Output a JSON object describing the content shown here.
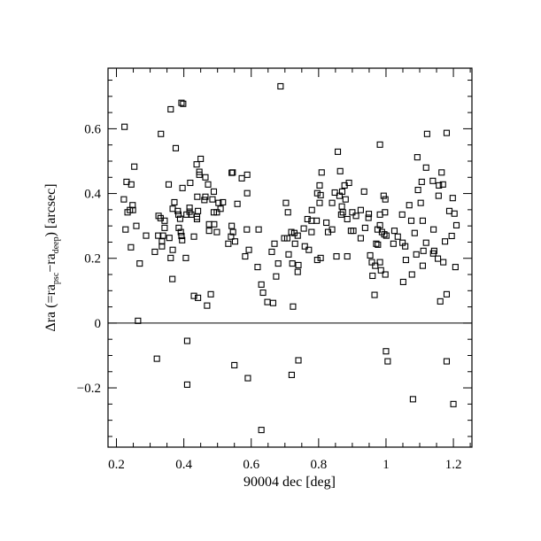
{
  "chart_data": {
    "type": "scatter",
    "title": "",
    "xlabel": "90004 dec [deg]",
    "ylabel": "Δra (=ra_psc−ra_deep) [arcsec]",
    "ylabel_parts": {
      "a": "Δra (=ra",
      "sub1": "psc",
      "b": "−ra",
      "sub2": "deep",
      "c": ") [arcsec]"
    },
    "xlim": [
      0.175,
      1.255
    ],
    "ylim": [
      -0.383,
      0.787
    ],
    "grid": false,
    "marker": "open-square",
    "colors": {
      "marker": "#000000",
      "axes": "#000000",
      "background": "#ffffff"
    },
    "xticks": [
      {
        "value": 0.2,
        "label": "0.2"
      },
      {
        "value": 0.4,
        "label": "0.4"
      },
      {
        "value": 0.6,
        "label": "0.6"
      },
      {
        "value": 0.8,
        "label": "0.8"
      },
      {
        "value": 1.0,
        "label": "1"
      },
      {
        "value": 1.2,
        "label": "1.2"
      }
    ],
    "yticks": [
      {
        "value": -0.2,
        "label": "−0.2"
      },
      {
        "value": 0,
        "label": "0"
      },
      {
        "value": 0.2,
        "label": "0.2"
      },
      {
        "value": 0.4,
        "label": "0.4"
      },
      {
        "value": 0.6,
        "label": "0.6"
      }
    ],
    "minor_tick_step": 0.05,
    "reference_line_y": 0,
    "points": [
      [
        0.393,
        0.68
      ],
      [
        0.398,
        0.677
      ],
      [
        0.361,
        0.66
      ],
      [
        0.224,
        0.606
      ],
      [
        0.332,
        0.584
      ],
      [
        0.376,
        0.54
      ],
      [
        0.45,
        0.507
      ],
      [
        0.438,
        0.49
      ],
      [
        0.253,
        0.483
      ],
      [
        0.446,
        0.467
      ],
      [
        0.446,
        0.458
      ],
      [
        0.464,
        0.45
      ],
      [
        0.542,
        0.464
      ],
      [
        0.23,
        0.436
      ],
      [
        0.244,
        0.428
      ],
      [
        0.355,
        0.428
      ],
      [
        0.419,
        0.433
      ],
      [
        0.472,
        0.428
      ],
      [
        0.396,
        0.417
      ],
      [
        0.489,
        0.406
      ],
      [
        0.222,
        0.382
      ],
      [
        0.248,
        0.364
      ],
      [
        0.372,
        0.373
      ],
      [
        0.44,
        0.39
      ],
      [
        0.464,
        0.39
      ],
      [
        0.461,
        0.38
      ],
      [
        0.485,
        0.382
      ],
      [
        0.503,
        0.371
      ],
      [
        0.516,
        0.373
      ],
      [
        0.367,
        0.353
      ],
      [
        0.417,
        0.356
      ],
      [
        0.509,
        0.353
      ],
      [
        0.233,
        0.342
      ],
      [
        0.24,
        0.349
      ],
      [
        0.249,
        0.349
      ],
      [
        0.382,
        0.346
      ],
      [
        0.384,
        0.335
      ],
      [
        0.389,
        0.322
      ],
      [
        0.417,
        0.344
      ],
      [
        0.408,
        0.335
      ],
      [
        0.422,
        0.335
      ],
      [
        0.442,
        0.346
      ],
      [
        0.439,
        0.328
      ],
      [
        0.439,
        0.321
      ],
      [
        0.325,
        0.331
      ],
      [
        0.331,
        0.324
      ],
      [
        0.343,
        0.316
      ],
      [
        0.489,
        0.342
      ],
      [
        0.498,
        0.342
      ],
      [
        0.259,
        0.3
      ],
      [
        0.227,
        0.289
      ],
      [
        0.343,
        0.294
      ],
      [
        0.385,
        0.294
      ],
      [
        0.391,
        0.281
      ],
      [
        0.393,
        0.269
      ],
      [
        0.395,
        0.256
      ],
      [
        0.288,
        0.27
      ],
      [
        0.324,
        0.27
      ],
      [
        0.338,
        0.27
      ],
      [
        0.357,
        0.263
      ],
      [
        0.335,
        0.252
      ],
      [
        0.335,
        0.237
      ],
      [
        0.43,
        0.267
      ],
      [
        0.475,
        0.305
      ],
      [
        0.49,
        0.305
      ],
      [
        0.475,
        0.285
      ],
      [
        0.498,
        0.281
      ],
      [
        0.542,
        0.3
      ],
      [
        0.532,
        0.245
      ],
      [
        0.243,
        0.234
      ],
      [
        0.314,
        0.22
      ],
      [
        0.367,
        0.226
      ],
      [
        0.361,
        0.201
      ],
      [
        0.406,
        0.201
      ],
      [
        0.269,
        0.184
      ],
      [
        0.366,
        0.136
      ],
      [
        0.43,
        0.084
      ],
      [
        0.442,
        0.078
      ],
      [
        0.48,
        0.089
      ],
      [
        0.469,
        0.054
      ],
      [
        0.264,
        0.007
      ],
      [
        0.687,
        0.731
      ],
      [
        0.857,
        0.529
      ],
      [
        0.545,
        0.465
      ],
      [
        0.572,
        0.447
      ],
      [
        0.588,
        0.458
      ],
      [
        0.809,
        0.465
      ],
      [
        0.864,
        0.469
      ],
      [
        0.803,
        0.425
      ],
      [
        0.89,
        0.433
      ],
      [
        0.877,
        0.425
      ],
      [
        0.588,
        0.401
      ],
      [
        0.796,
        0.401
      ],
      [
        0.806,
        0.395
      ],
      [
        0.848,
        0.403
      ],
      [
        0.87,
        0.406
      ],
      [
        0.862,
        0.393
      ],
      [
        0.88,
        0.382
      ],
      [
        0.559,
        0.368
      ],
      [
        0.703,
        0.371
      ],
      [
        0.803,
        0.371
      ],
      [
        0.84,
        0.371
      ],
      [
        0.869,
        0.36
      ],
      [
        0.709,
        0.342
      ],
      [
        0.78,
        0.349
      ],
      [
        0.872,
        0.342
      ],
      [
        0.867,
        0.335
      ],
      [
        0.9,
        0.342
      ],
      [
        0.885,
        0.321
      ],
      [
        0.767,
        0.321
      ],
      [
        0.779,
        0.316
      ],
      [
        0.794,
        0.316
      ],
      [
        0.823,
        0.31
      ],
      [
        0.546,
        0.281
      ],
      [
        0.54,
        0.267
      ],
      [
        0.587,
        0.289
      ],
      [
        0.622,
        0.289
      ],
      [
        0.552,
        0.252
      ],
      [
        0.719,
        0.281
      ],
      [
        0.728,
        0.278
      ],
      [
        0.738,
        0.27
      ],
      [
        0.698,
        0.262
      ],
      [
        0.707,
        0.262
      ],
      [
        0.756,
        0.292
      ],
      [
        0.779,
        0.281
      ],
      [
        0.828,
        0.281
      ],
      [
        0.84,
        0.289
      ],
      [
        0.896,
        0.285
      ],
      [
        0.669,
        0.245
      ],
      [
        0.73,
        0.245
      ],
      [
        0.759,
        0.237
      ],
      [
        0.771,
        0.226
      ],
      [
        0.593,
        0.226
      ],
      [
        0.582,
        0.206
      ],
      [
        0.661,
        0.22
      ],
      [
        0.711,
        0.212
      ],
      [
        0.796,
        0.195
      ],
      [
        0.806,
        0.201
      ],
      [
        0.853,
        0.206
      ],
      [
        0.885,
        0.206
      ],
      [
        0.619,
        0.173
      ],
      [
        0.68,
        0.184
      ],
      [
        0.722,
        0.184
      ],
      [
        0.74,
        0.179
      ],
      [
        0.738,
        0.158
      ],
      [
        0.674,
        0.144
      ],
      [
        0.63,
        0.119
      ],
      [
        0.635,
        0.094
      ],
      [
        0.648,
        0.065
      ],
      [
        0.665,
        0.062
      ],
      [
        0.724,
        0.051
      ],
      [
        1.122,
        0.584
      ],
      [
        1.18,
        0.587
      ],
      [
        0.982,
        0.551
      ],
      [
        1.093,
        0.512
      ],
      [
        1.119,
        0.48
      ],
      [
        1.165,
        0.465
      ],
      [
        1.106,
        0.436
      ],
      [
        1.139,
        0.439
      ],
      [
        1.157,
        0.425
      ],
      [
        1.169,
        0.428
      ],
      [
        0.935,
        0.406
      ],
      [
        1.095,
        0.411
      ],
      [
        0.993,
        0.393
      ],
      [
        0.998,
        0.382
      ],
      [
        1.156,
        0.393
      ],
      [
        1.198,
        0.386
      ],
      [
        1.069,
        0.364
      ],
      [
        1.103,
        0.371
      ],
      [
        0.911,
        0.331
      ],
      [
        0.925,
        0.349
      ],
      [
        0.949,
        0.337
      ],
      [
        0.948,
        0.325
      ],
      [
        0.982,
        0.335
      ],
      [
        0.997,
        0.342
      ],
      [
        1.048,
        0.335
      ],
      [
        1.188,
        0.346
      ],
      [
        1.203,
        0.338
      ],
      [
        1.075,
        0.316
      ],
      [
        1.109,
        0.316
      ],
      [
        1.209,
        0.302
      ],
      [
        0.982,
        0.302
      ],
      [
        0.938,
        0.294
      ],
      [
        0.903,
        0.285
      ],
      [
        0.975,
        0.289
      ],
      [
        0.988,
        0.281
      ],
      [
        0.995,
        0.274
      ],
      [
        1.001,
        0.27
      ],
      [
        1.025,
        0.285
      ],
      [
        1.035,
        0.267
      ],
      [
        1.085,
        0.278
      ],
      [
        1.141,
        0.289
      ],
      [
        1.195,
        0.269
      ],
      [
        0.925,
        0.262
      ],
      [
        1.175,
        0.252
      ],
      [
        0.971,
        0.245
      ],
      [
        0.976,
        0.242
      ],
      [
        1.022,
        0.245
      ],
      [
        1.049,
        0.248
      ],
      [
        1.057,
        0.237
      ],
      [
        1.119,
        0.248
      ],
      [
        1.143,
        0.223
      ],
      [
        1.14,
        0.215
      ],
      [
        1.111,
        0.223
      ],
      [
        1.09,
        0.212
      ],
      [
        0.953,
        0.209
      ],
      [
        1.154,
        0.199
      ],
      [
        1.17,
        0.188
      ],
      [
        1.059,
        0.195
      ],
      [
        0.958,
        0.188
      ],
      [
        0.968,
        0.177
      ],
      [
        0.982,
        0.188
      ],
      [
        0.985,
        0.163
      ],
      [
        0.998,
        0.15
      ],
      [
        1.109,
        0.177
      ],
      [
        1.206,
        0.173
      ],
      [
        0.96,
        0.146
      ],
      [
        1.077,
        0.15
      ],
      [
        1.051,
        0.127
      ],
      [
        0.966,
        0.087
      ],
      [
        1.18,
        0.089
      ],
      [
        1.161,
        0.067
      ],
      [
        0.32,
        -0.11
      ],
      [
        0.41,
        -0.055
      ],
      [
        0.41,
        -0.19
      ],
      [
        0.55,
        -0.13
      ],
      [
        0.59,
        -0.17
      ],
      [
        0.63,
        -0.33
      ],
      [
        0.74,
        -0.115
      ],
      [
        0.72,
        -0.16
      ],
      [
        1.0,
        -0.087
      ],
      [
        1.005,
        -0.118
      ],
      [
        1.08,
        -0.235
      ],
      [
        1.18,
        -0.118
      ],
      [
        1.2,
        -0.25
      ]
    ]
  }
}
